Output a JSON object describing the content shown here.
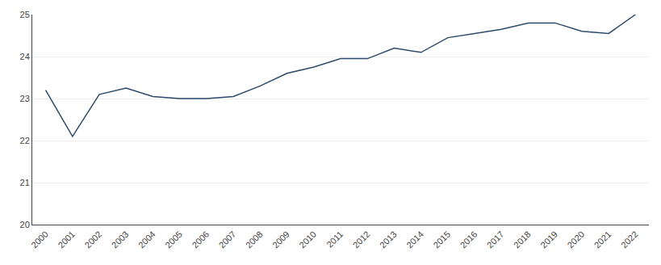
{
  "chart_data": {
    "type": "line",
    "x": [
      2000,
      2001,
      2002,
      2003,
      2004,
      2005,
      2006,
      2007,
      2008,
      2009,
      2010,
      2011,
      2012,
      2013,
      2014,
      2015,
      2016,
      2017,
      2018,
      2019,
      2020,
      2021,
      2022
    ],
    "values": [
      23.2,
      22.1,
      23.1,
      23.25,
      23.05,
      23.0,
      23.0,
      23.05,
      23.3,
      23.6,
      23.75,
      23.95,
      23.95,
      24.2,
      24.1,
      24.45,
      24.55,
      24.65,
      24.8,
      24.8,
      24.6,
      24.55,
      25.0
    ],
    "color": "#2b4a6b",
    "xlim": [
      1999.5,
      2022.5
    ],
    "xticks": [
      2000,
      2001,
      2002,
      2003,
      2004,
      2005,
      2006,
      2007,
      2008,
      2009,
      2010,
      2011,
      2012,
      2013,
      2014,
      2015,
      2016,
      2017,
      2018,
      2019,
      2020,
      2021,
      2022
    ],
    "ylim": [
      20,
      25
    ],
    "yticks": [
      20,
      21,
      22,
      23,
      24,
      25
    ],
    "grid": "y"
  }
}
